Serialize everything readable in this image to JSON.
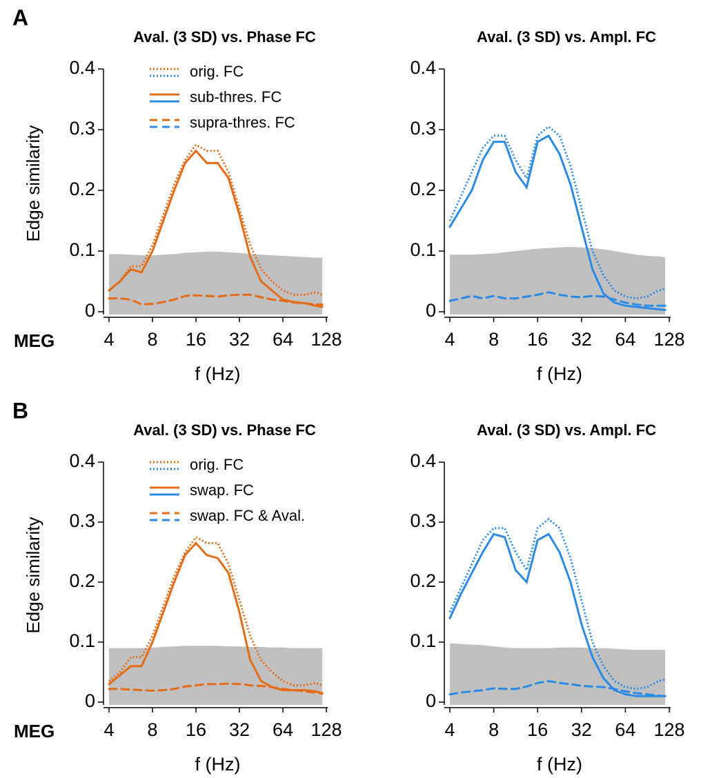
{
  "chart_data": [
    {
      "type": "line",
      "panel_label": "A",
      "row_label": "MEG",
      "title": "Aval. (3 SD) vs. Phase FC",
      "ylabel": "Edge similarity",
      "xlabel": "f (Hz)",
      "xscale": "log",
      "xlim": [
        4,
        128
      ],
      "xticks": [
        4,
        8,
        16,
        32,
        64,
        128
      ],
      "ylim": [
        0,
        0.4
      ],
      "yticks": [
        0,
        0.1,
        0.2,
        0.3,
        0.4
      ],
      "legend": "upper left",
      "x": [
        4,
        4.76,
        5.66,
        6.73,
        8,
        9.51,
        11.31,
        13.45,
        16,
        19.03,
        22.63,
        26.91,
        32,
        38.05,
        45.25,
        53.82,
        64,
        76.11,
        90.51,
        107.63,
        120
      ],
      "band": {
        "color": "#c0c0c0",
        "values": [
          0.095,
          0.095,
          0.094,
          0.093,
          0.093,
          0.094,
          0.095,
          0.097,
          0.098,
          0.099,
          0.099,
          0.098,
          0.097,
          0.095,
          0.094,
          0.093,
          0.092,
          0.091,
          0.09,
          0.089,
          0.089
        ]
      },
      "series": [
        {
          "name": "orig. FC",
          "color": "#e46c17",
          "dash": "dotted",
          "values": [
            0.035,
            0.05,
            0.075,
            0.075,
            0.11,
            0.16,
            0.21,
            0.25,
            0.275,
            0.265,
            0.265,
            0.23,
            0.17,
            0.11,
            0.07,
            0.05,
            0.035,
            0.028,
            0.028,
            0.032,
            0.028
          ]
        },
        {
          "name": "sub-thres. FC",
          "color": "#e46c17",
          "dash": "solid",
          "values": [
            0.035,
            0.05,
            0.07,
            0.065,
            0.1,
            0.15,
            0.2,
            0.245,
            0.265,
            0.245,
            0.245,
            0.22,
            0.16,
            0.09,
            0.05,
            0.035,
            0.02,
            0.016,
            0.014,
            0.01,
            0.008
          ]
        },
        {
          "name": "supra-thres. FC",
          "color": "#e46c17",
          "dash": "dashed",
          "values": [
            0.022,
            0.022,
            0.02,
            0.012,
            0.013,
            0.016,
            0.02,
            0.026,
            0.027,
            0.026,
            0.025,
            0.027,
            0.028,
            0.028,
            0.024,
            0.02,
            0.018,
            0.015,
            0.014,
            0.012,
            0.012
          ]
        }
      ]
    },
    {
      "type": "line",
      "title": "Aval. (3 SD) vs. Ampl. FC",
      "xlabel": "f (Hz)",
      "xscale": "log",
      "xlim": [
        4,
        128
      ],
      "xticks": [
        4,
        8,
        16,
        32,
        64,
        128
      ],
      "ylim": [
        0,
        0.4
      ],
      "yticks": [
        0,
        0.1,
        0.2,
        0.3,
        0.4
      ],
      "x": [
        4,
        4.76,
        5.66,
        6.73,
        8,
        9.51,
        11.31,
        13.45,
        16,
        19.03,
        22.63,
        26.91,
        32,
        38.05,
        45.25,
        53.82,
        64,
        76.11,
        90.51,
        107.63,
        120
      ],
      "band": {
        "color": "#c0c0c0",
        "values": [
          0.094,
          0.094,
          0.094,
          0.095,
          0.096,
          0.098,
          0.1,
          0.102,
          0.104,
          0.105,
          0.106,
          0.107,
          0.106,
          0.105,
          0.103,
          0.1,
          0.097,
          0.094,
          0.092,
          0.091,
          0.09
        ]
      },
      "series": [
        {
          "color": "#2a8ae6",
          "dash": "dotted",
          "values": [
            0.15,
            0.19,
            0.23,
            0.27,
            0.29,
            0.29,
            0.25,
            0.22,
            0.29,
            0.305,
            0.29,
            0.24,
            0.17,
            0.1,
            0.06,
            0.035,
            0.025,
            0.022,
            0.025,
            0.035,
            0.038
          ]
        },
        {
          "color": "#2a8ae6",
          "dash": "solid",
          "values": [
            0.14,
            0.17,
            0.2,
            0.25,
            0.28,
            0.28,
            0.23,
            0.205,
            0.28,
            0.29,
            0.26,
            0.21,
            0.14,
            0.07,
            0.03,
            0.015,
            0.01,
            0.008,
            0.006,
            0.004,
            0.003
          ]
        },
        {
          "color": "#2a8ae6",
          "dash": "dashed",
          "values": [
            0.018,
            0.022,
            0.026,
            0.022,
            0.026,
            0.022,
            0.022,
            0.025,
            0.028,
            0.032,
            0.028,
            0.025,
            0.024,
            0.026,
            0.025,
            0.02,
            0.015,
            0.012,
            0.01,
            0.01,
            0.01
          ]
        }
      ]
    },
    {
      "type": "line",
      "panel_label": "B",
      "row_label": "MEG",
      "title": "Aval. (3 SD) vs. Phase FC",
      "ylabel": "Edge similarity",
      "xlabel": "f (Hz)",
      "xscale": "log",
      "xlim": [
        4,
        128
      ],
      "xticks": [
        4,
        8,
        16,
        32,
        64,
        128
      ],
      "ylim": [
        0,
        0.4
      ],
      "yticks": [
        0,
        0.1,
        0.2,
        0.3,
        0.4
      ],
      "legend": "upper left",
      "x": [
        4,
        4.76,
        5.66,
        6.73,
        8,
        9.51,
        11.31,
        13.45,
        16,
        19.03,
        22.63,
        26.91,
        32,
        38.05,
        45.25,
        53.82,
        64,
        76.11,
        90.51,
        107.63,
        120
      ],
      "band": {
        "color": "#c0c0c0",
        "values": [
          0.09,
          0.09,
          0.09,
          0.09,
          0.091,
          0.092,
          0.093,
          0.094,
          0.094,
          0.094,
          0.094,
          0.093,
          0.093,
          0.092,
          0.092,
          0.091,
          0.091,
          0.09,
          0.09,
          0.09,
          0.09
        ]
      },
      "series": [
        {
          "name": "orig. FC",
          "color": "#e46c17",
          "dash": "dotted",
          "values": [
            0.035,
            0.05,
            0.075,
            0.075,
            0.11,
            0.16,
            0.21,
            0.25,
            0.275,
            0.265,
            0.265,
            0.23,
            0.17,
            0.11,
            0.07,
            0.05,
            0.035,
            0.028,
            0.028,
            0.032,
            0.028
          ]
        },
        {
          "name": "swap. FC",
          "color": "#e46c17",
          "dash": "solid",
          "values": [
            0.03,
            0.045,
            0.06,
            0.06,
            0.1,
            0.15,
            0.2,
            0.245,
            0.265,
            0.245,
            0.24,
            0.215,
            0.15,
            0.07,
            0.035,
            0.025,
            0.02,
            0.02,
            0.02,
            0.018,
            0.015
          ]
        },
        {
          "name": "swap. FC & Aval.",
          "color": "#e46c17",
          "dash": "dashed",
          "values": [
            0.022,
            0.022,
            0.021,
            0.02,
            0.019,
            0.02,
            0.022,
            0.026,
            0.028,
            0.03,
            0.03,
            0.031,
            0.03,
            0.028,
            0.027,
            0.025,
            0.022,
            0.02,
            0.018,
            0.016,
            0.014
          ]
        }
      ]
    },
    {
      "type": "line",
      "title": "Aval. (3 SD) vs. Ampl. FC",
      "xlabel": "f (Hz)",
      "xscale": "log",
      "xlim": [
        4,
        128
      ],
      "xticks": [
        4,
        8,
        16,
        32,
        64,
        128
      ],
      "ylim": [
        0,
        0.4
      ],
      "yticks": [
        0,
        0.1,
        0.2,
        0.3,
        0.4
      ],
      "x": [
        4,
        4.76,
        5.66,
        6.73,
        8,
        9.51,
        11.31,
        13.45,
        16,
        19.03,
        22.63,
        26.91,
        32,
        38.05,
        45.25,
        53.82,
        64,
        76.11,
        90.51,
        107.63,
        120
      ],
      "band": {
        "color": "#c0c0c0",
        "values": [
          0.098,
          0.097,
          0.096,
          0.095,
          0.093,
          0.091,
          0.09,
          0.09,
          0.09,
          0.09,
          0.091,
          0.091,
          0.091,
          0.09,
          0.09,
          0.089,
          0.088,
          0.087,
          0.087,
          0.087,
          0.087
        ]
      },
      "series": [
        {
          "color": "#2a8ae6",
          "dash": "dotted",
          "values": [
            0.15,
            0.19,
            0.23,
            0.27,
            0.29,
            0.29,
            0.25,
            0.22,
            0.29,
            0.305,
            0.29,
            0.24,
            0.17,
            0.1,
            0.06,
            0.035,
            0.025,
            0.022,
            0.025,
            0.035,
            0.038
          ]
        },
        {
          "color": "#2a8ae6",
          "dash": "solid",
          "values": [
            0.14,
            0.18,
            0.215,
            0.25,
            0.28,
            0.275,
            0.22,
            0.2,
            0.27,
            0.28,
            0.25,
            0.2,
            0.13,
            0.075,
            0.04,
            0.02,
            0.013,
            0.01,
            0.01,
            0.01,
            0.01
          ]
        },
        {
          "color": "#2a8ae6",
          "dash": "dashed",
          "values": [
            0.013,
            0.016,
            0.018,
            0.02,
            0.023,
            0.022,
            0.022,
            0.026,
            0.032,
            0.035,
            0.032,
            0.03,
            0.027,
            0.026,
            0.025,
            0.022,
            0.018,
            0.015,
            0.013,
            0.011,
            0.01
          ]
        }
      ]
    }
  ]
}
